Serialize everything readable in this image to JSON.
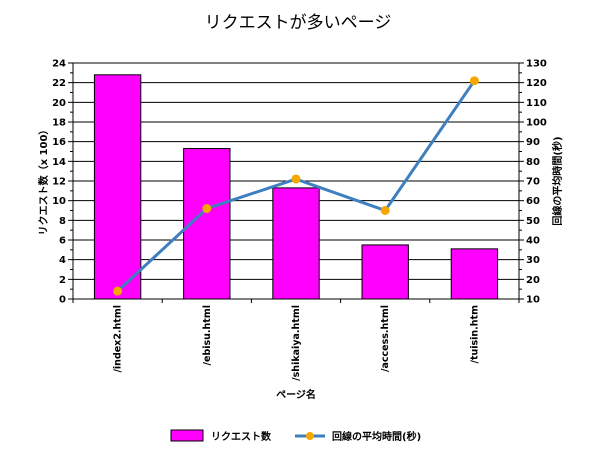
{
  "chart_data": {
    "type": "bar",
    "title": "リクエストが多いページ",
    "xlabel": "ページ名",
    "ylabel": "リクエスト数（x 100）",
    "y2label": "回線の平均時間(秒)",
    "categories": [
      "/index2.html",
      "/ebisu.html",
      "/shikaiya.html",
      "/access.html",
      "/tuisin.htm"
    ],
    "ylim": [
      0,
      24
    ],
    "y_ticks": [
      "0",
      "2",
      "4",
      "6",
      "8",
      "10",
      "12",
      "14",
      "16",
      "18",
      "20",
      "22",
      "24"
    ],
    "y2lim": [
      10,
      130
    ],
    "y2_ticks": [
      "10",
      "20",
      "30",
      "40",
      "50",
      "60",
      "70",
      "80",
      "90",
      "100",
      "110",
      "120",
      "130"
    ],
    "grid": true,
    "legend_position": "bottom",
    "series": [
      {
        "name": "リクエスト数",
        "type": "bar",
        "axis": "left",
        "color": "#ff00ff",
        "values": [
          22.8,
          15.3,
          11.3,
          5.5,
          5.1
        ]
      },
      {
        "name": "回線の平均時間(秒)",
        "type": "line",
        "axis": "right",
        "color": "#3f7fbf",
        "marker_color": "#f5a800",
        "values": [
          14,
          56,
          71,
          55,
          121
        ]
      }
    ]
  }
}
